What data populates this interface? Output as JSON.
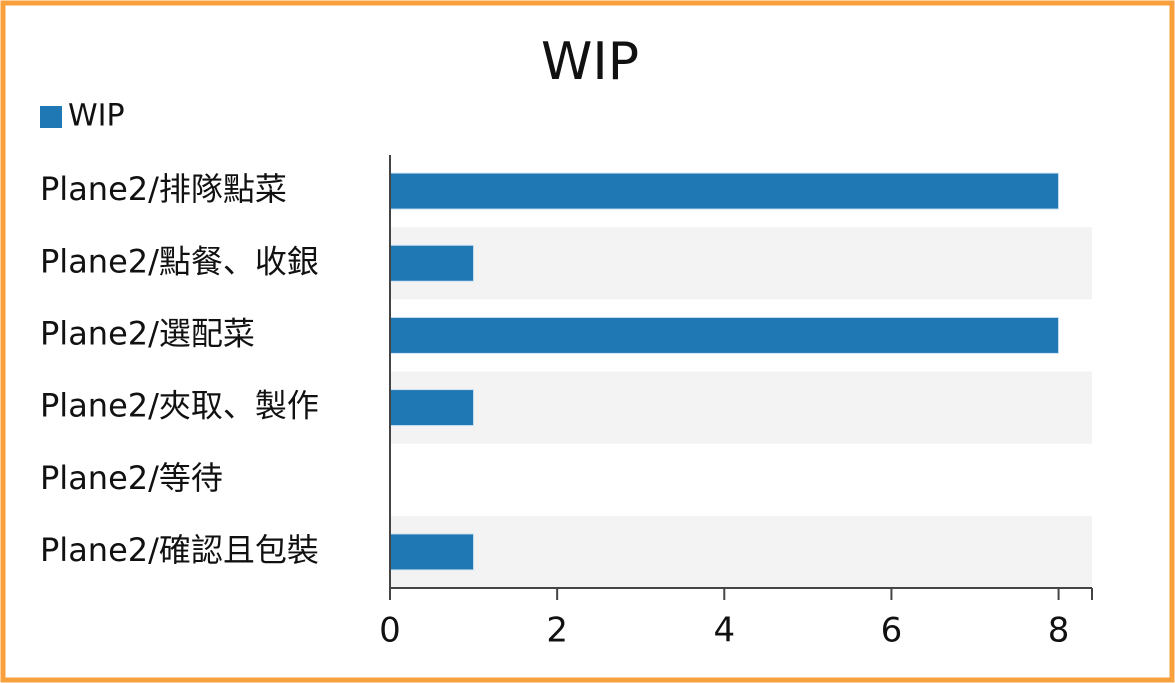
{
  "chart_data": {
    "type": "bar",
    "orientation": "horizontal",
    "title": "WIP",
    "categories": [
      "Plane2/排隊點菜",
      "Plane2/點餐、收銀",
      "Plane2/選配菜",
      "Plane2/夾取、製作",
      "Plane2/等待",
      "Plane2/確認且包裝"
    ],
    "series": [
      {
        "name": "WIP",
        "color": "#1f77b4",
        "values": [
          8,
          1,
          8,
          1,
          0,
          1
        ]
      }
    ],
    "xlim": [
      0,
      8.4
    ],
    "xticks": [
      0,
      2,
      4,
      6,
      8
    ],
    "legend": "top-left"
  }
}
